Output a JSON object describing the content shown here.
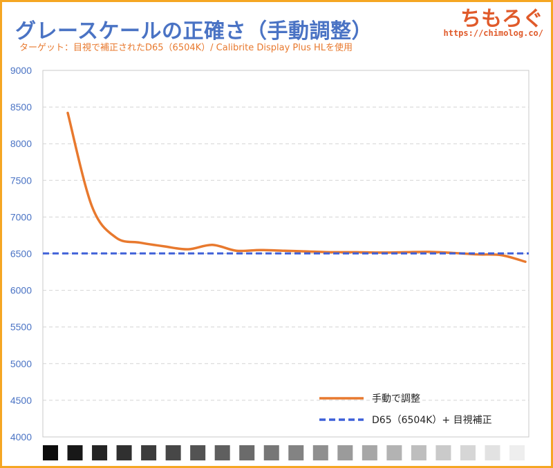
{
  "header": {
    "title": "グレースケールの正確さ（手動調整）",
    "subtitle": "ターゲット：目視で補正されたD65（6504K）/ Calibrite Display Plus HLを使用",
    "logo": "ちもろぐ",
    "site_url": "https://chimolog.co/"
  },
  "colors": {
    "accent_orange": "#e8792e",
    "accent_blue": "#4a73c4",
    "target_blue": "#3d5fd8",
    "frame": "#f5a623"
  },
  "chart_data": {
    "type": "line",
    "title": "グレースケールの正確さ（手動調整）",
    "xlabel": "",
    "ylabel": "",
    "ylim": [
      4000,
      9000
    ],
    "yticks": [
      4000,
      4500,
      5000,
      5500,
      6000,
      6500,
      7000,
      7500,
      8000,
      8500,
      9000
    ],
    "grid": true,
    "legend_position": "bottom-right",
    "grayscale_steps": [
      5,
      10,
      15,
      20,
      25,
      30,
      35,
      40,
      45,
      50,
      55,
      60,
      65,
      70,
      75,
      80,
      85,
      90,
      95,
      100
    ],
    "series": [
      {
        "name": "手動で調整",
        "style": "solid",
        "color": "#e8792e",
        "values": [
          8420,
          7150,
          6720,
          6650,
          6600,
          6560,
          6620,
          6540,
          6550,
          6540,
          6530,
          6520,
          6520,
          6515,
          6520,
          6525,
          6510,
          6490,
          6480,
          6390
        ]
      },
      {
        "name": "D65（6504K）+ 目視補正",
        "style": "dashed",
        "color": "#3d5fd8",
        "values": [
          6504,
          6504,
          6504,
          6504,
          6504,
          6504,
          6504,
          6504,
          6504,
          6504,
          6504,
          6504,
          6504,
          6504,
          6504,
          6504,
          6504,
          6504,
          6504,
          6504
        ]
      }
    ]
  }
}
